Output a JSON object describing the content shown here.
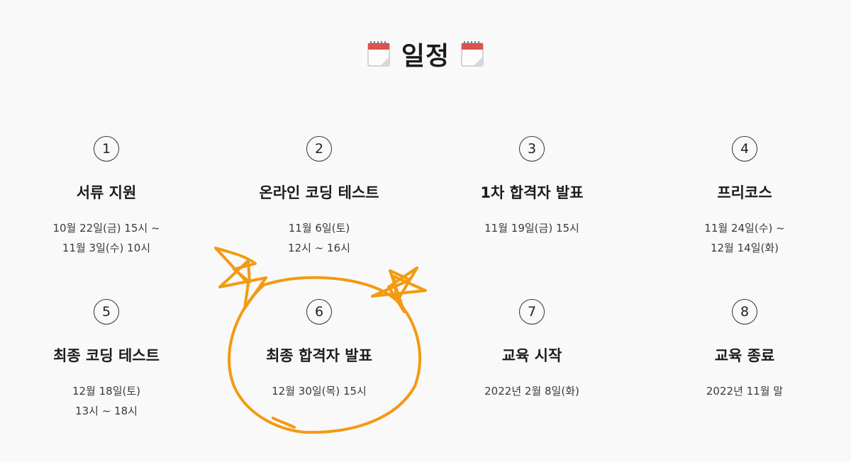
{
  "header": {
    "title": "일정"
  },
  "steps": [
    {
      "num": "1",
      "title": "서류 지원",
      "date": "10월 22일(금) 15시 ~\n11월 3일(수) 10시"
    },
    {
      "num": "2",
      "title": "온라인 코딩 테스트",
      "date": "11월 6일(토)\n12시 ~ 16시"
    },
    {
      "num": "3",
      "title": "1차 합격자 발표",
      "date": "11월 19일(금) 15시"
    },
    {
      "num": "4",
      "title": "프리코스",
      "date": "11월 24일(수) ~\n12월 14일(화)"
    },
    {
      "num": "5",
      "title": "최종 코딩 테스트",
      "date": "12월 18일(토)\n13시 ~ 18시"
    },
    {
      "num": "6",
      "title": "최종 합격자 발표",
      "date": "12월 30일(목) 15시"
    },
    {
      "num": "7",
      "title": "교육 시작",
      "date": "2022년 2월 8일(화)"
    },
    {
      "num": "8",
      "title": "교육 종료",
      "date": "2022년 11월 말"
    }
  ],
  "colors": {
    "doodle": "#f39a12",
    "text": "#1c1c1c",
    "icon_header": "#d9534f"
  },
  "icons": {
    "title_left": "calendar-icon",
    "title_right": "calendar-icon"
  }
}
